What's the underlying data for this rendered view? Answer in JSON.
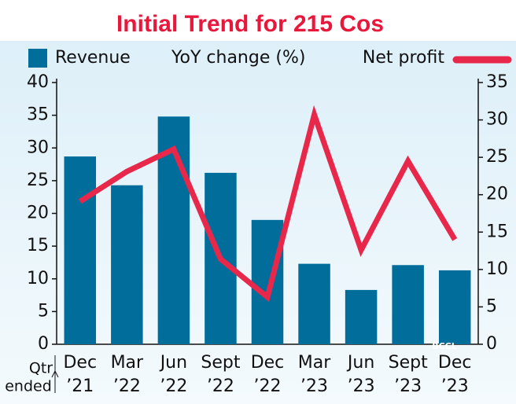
{
  "chart_data": {
    "type": "bar_line",
    "title": "Initial Trend for 215 Cos",
    "legend_heading": "YoY change (%)",
    "x_label": [
      "Qtr",
      "ended"
    ],
    "categories": [
      [
        "Dec",
        "’21"
      ],
      [
        "Mar",
        "’22"
      ],
      [
        "Jun",
        "’22"
      ],
      [
        "Sept",
        "’22"
      ],
      [
        "Dec",
        "’22"
      ],
      [
        "Mar",
        "’23"
      ],
      [
        "Jun",
        "’23"
      ],
      [
        "Sept",
        "’23"
      ],
      [
        "Dec",
        "’23"
      ]
    ],
    "series": [
      {
        "name": "Revenue",
        "type": "bar",
        "color": "#006d9b",
        "values": [
          28.7,
          24.3,
          34.8,
          26.2,
          19.0,
          12.3,
          8.3,
          12.1,
          11.3
        ]
      },
      {
        "name": "Net profit",
        "type": "line",
        "axis": "y2",
        "color": "#e8284a",
        "values": [
          19.1,
          23.1,
          26.1,
          11.4,
          6.3,
          30.7,
          12.6,
          24.5,
          14.0
        ]
      }
    ],
    "ylim": [
      0,
      40
    ],
    "yticks": [
      0,
      5,
      10,
      15,
      20,
      25,
      30,
      35,
      40
    ],
    "y2lim": [
      0,
      35
    ],
    "y2ticks": [
      0,
      5,
      10,
      15,
      20,
      25,
      30,
      35
    ],
    "watermark": "BCCL"
  }
}
